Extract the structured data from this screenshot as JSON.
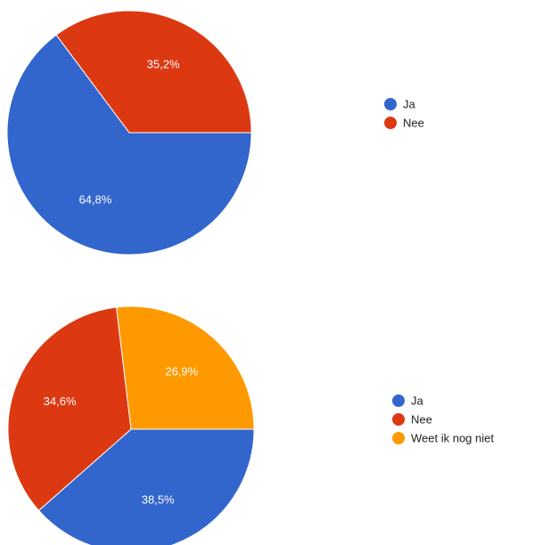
{
  "chart_data": [
    {
      "type": "pie",
      "categories": [
        "Ja",
        "Nee"
      ],
      "values": [
        64.8,
        35.2
      ],
      "labels": [
        "64,8%",
        "35,2%"
      ],
      "colors": [
        "#3366cc",
        "#dc3912"
      ],
      "legend": {
        "placement": "right",
        "entries": [
          "Ja",
          "Nee"
        ]
      }
    },
    {
      "type": "pie",
      "categories": [
        "Ja",
        "Nee",
        "Weet ik nog niet"
      ],
      "values": [
        38.5,
        34.6,
        26.9
      ],
      "labels": [
        "38,5%",
        "34,6%",
        "26,9%"
      ],
      "colors": [
        "#3366cc",
        "#dc3912",
        "#ff9900"
      ],
      "legend": {
        "placement": "right",
        "entries": [
          "Ja",
          "Nee",
          "Weet ik nog niet"
        ]
      }
    }
  ]
}
